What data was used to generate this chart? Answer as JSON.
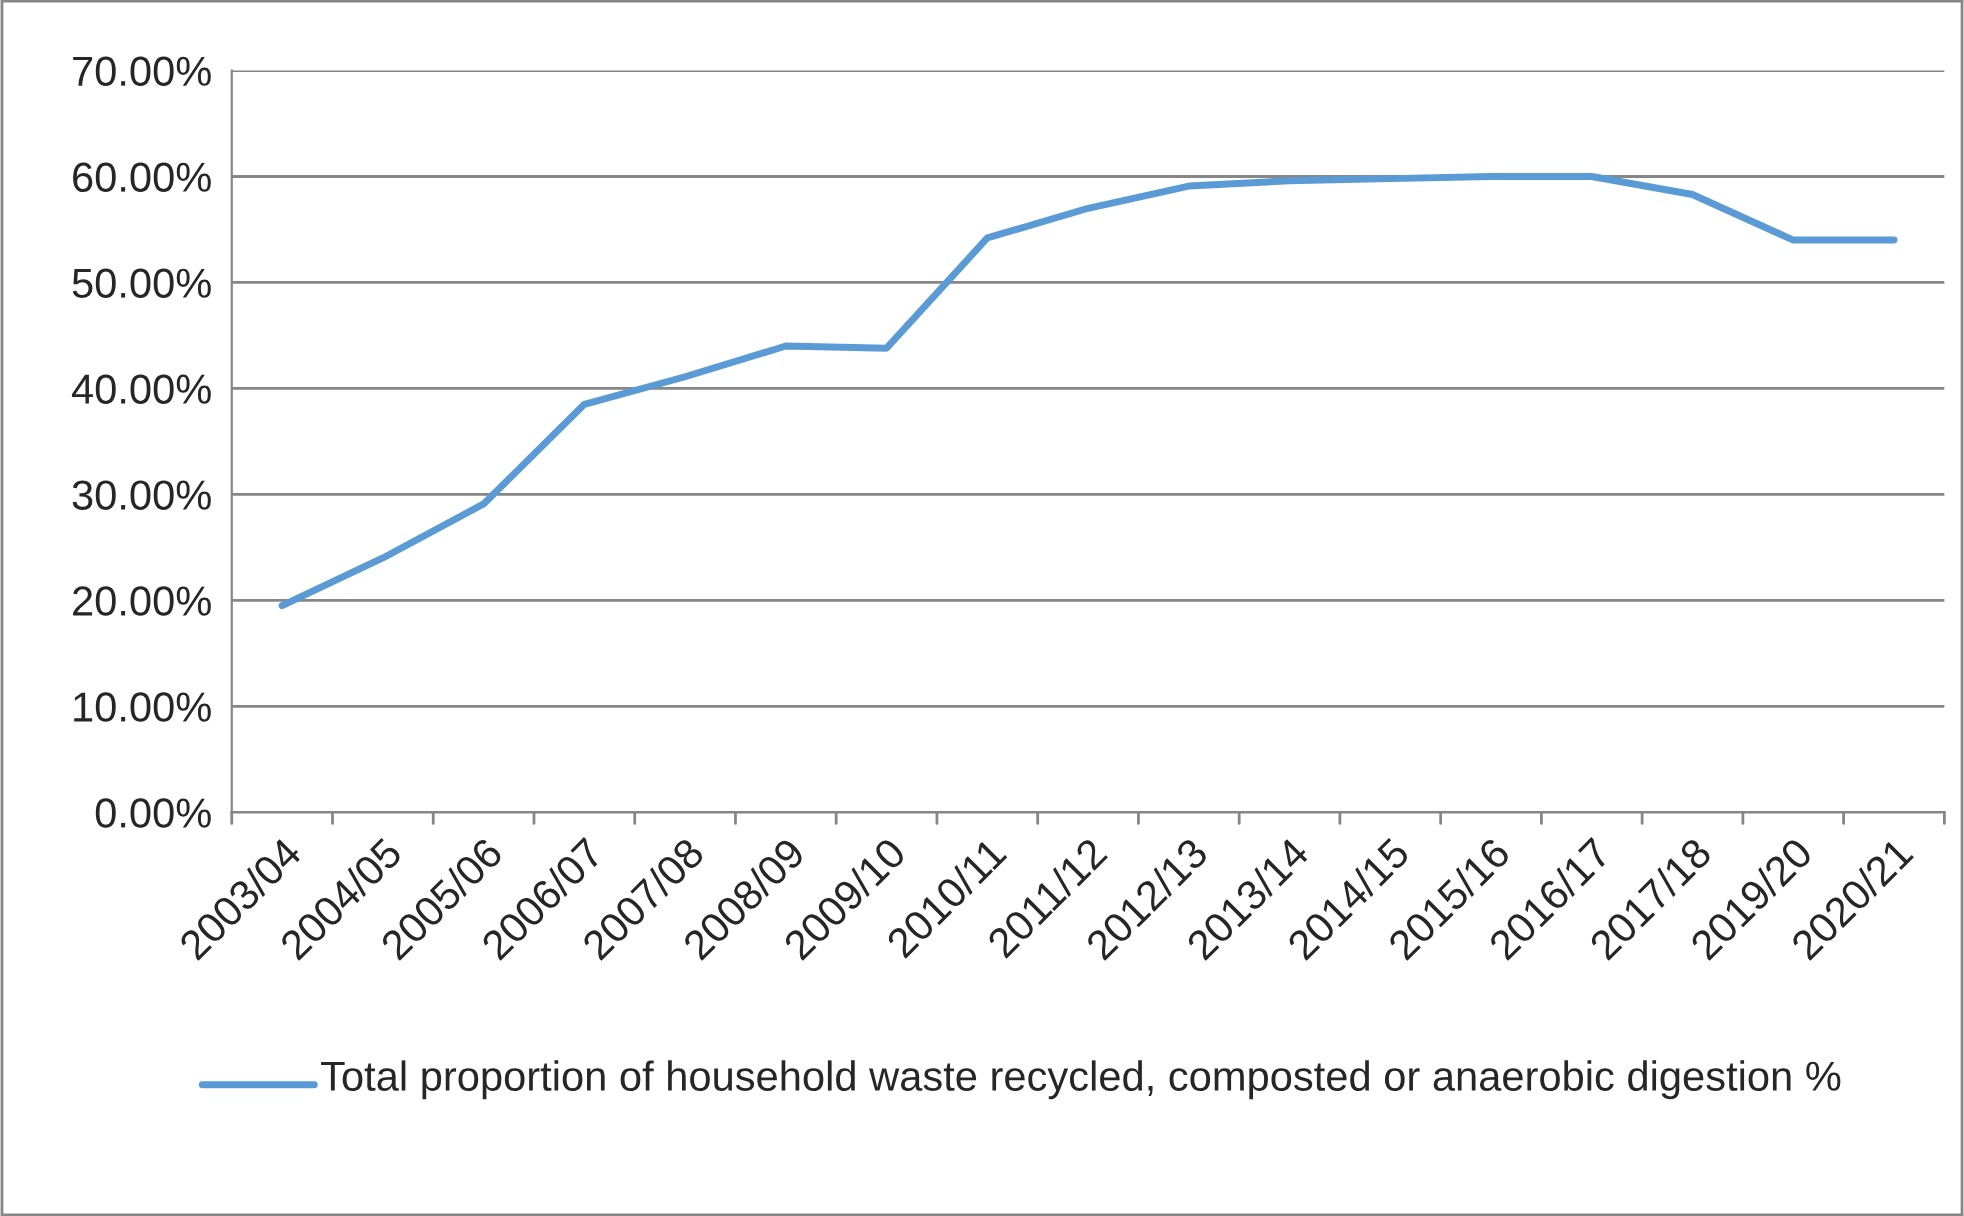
{
  "chart_data": {
    "type": "line",
    "categories": [
      "2003/04",
      "2004/05",
      "2005/06",
      "2006/07",
      "2007/08",
      "2008/09",
      "2009/10",
      "2010/11",
      "2011/12",
      "2012/13",
      "2013/14",
      "2014/15",
      "2015/16",
      "2016/17",
      "2017/18",
      "2019/20",
      "2020/21"
    ],
    "series": [
      {
        "name": "Total proportion of household waste recycled, composted or anaerobic digestion %",
        "color": "#5b9bd5",
        "values": [
          19.5,
          24.0,
          29.1,
          38.5,
          41.1,
          44.0,
          43.8,
          54.2,
          57.0,
          59.1,
          59.6,
          59.8,
          60.0,
          60.0,
          58.3,
          54.0,
          54.0
        ]
      }
    ],
    "ylim": [
      0,
      70
    ],
    "yticks": [
      {
        "value": 0,
        "label": "0.00%"
      },
      {
        "value": 10,
        "label": "10.00%"
      },
      {
        "value": 20,
        "label": "20.00%"
      },
      {
        "value": 30,
        "label": "30.00%"
      },
      {
        "value": 40,
        "label": "40.00%"
      },
      {
        "value": 50,
        "label": "50.00%"
      },
      {
        "value": 60,
        "label": "60.00%"
      },
      {
        "value": 70,
        "label": "70.00%"
      }
    ],
    "grid": "y",
    "legend": "bottom",
    "marker": "none",
    "line_style": "solid"
  }
}
